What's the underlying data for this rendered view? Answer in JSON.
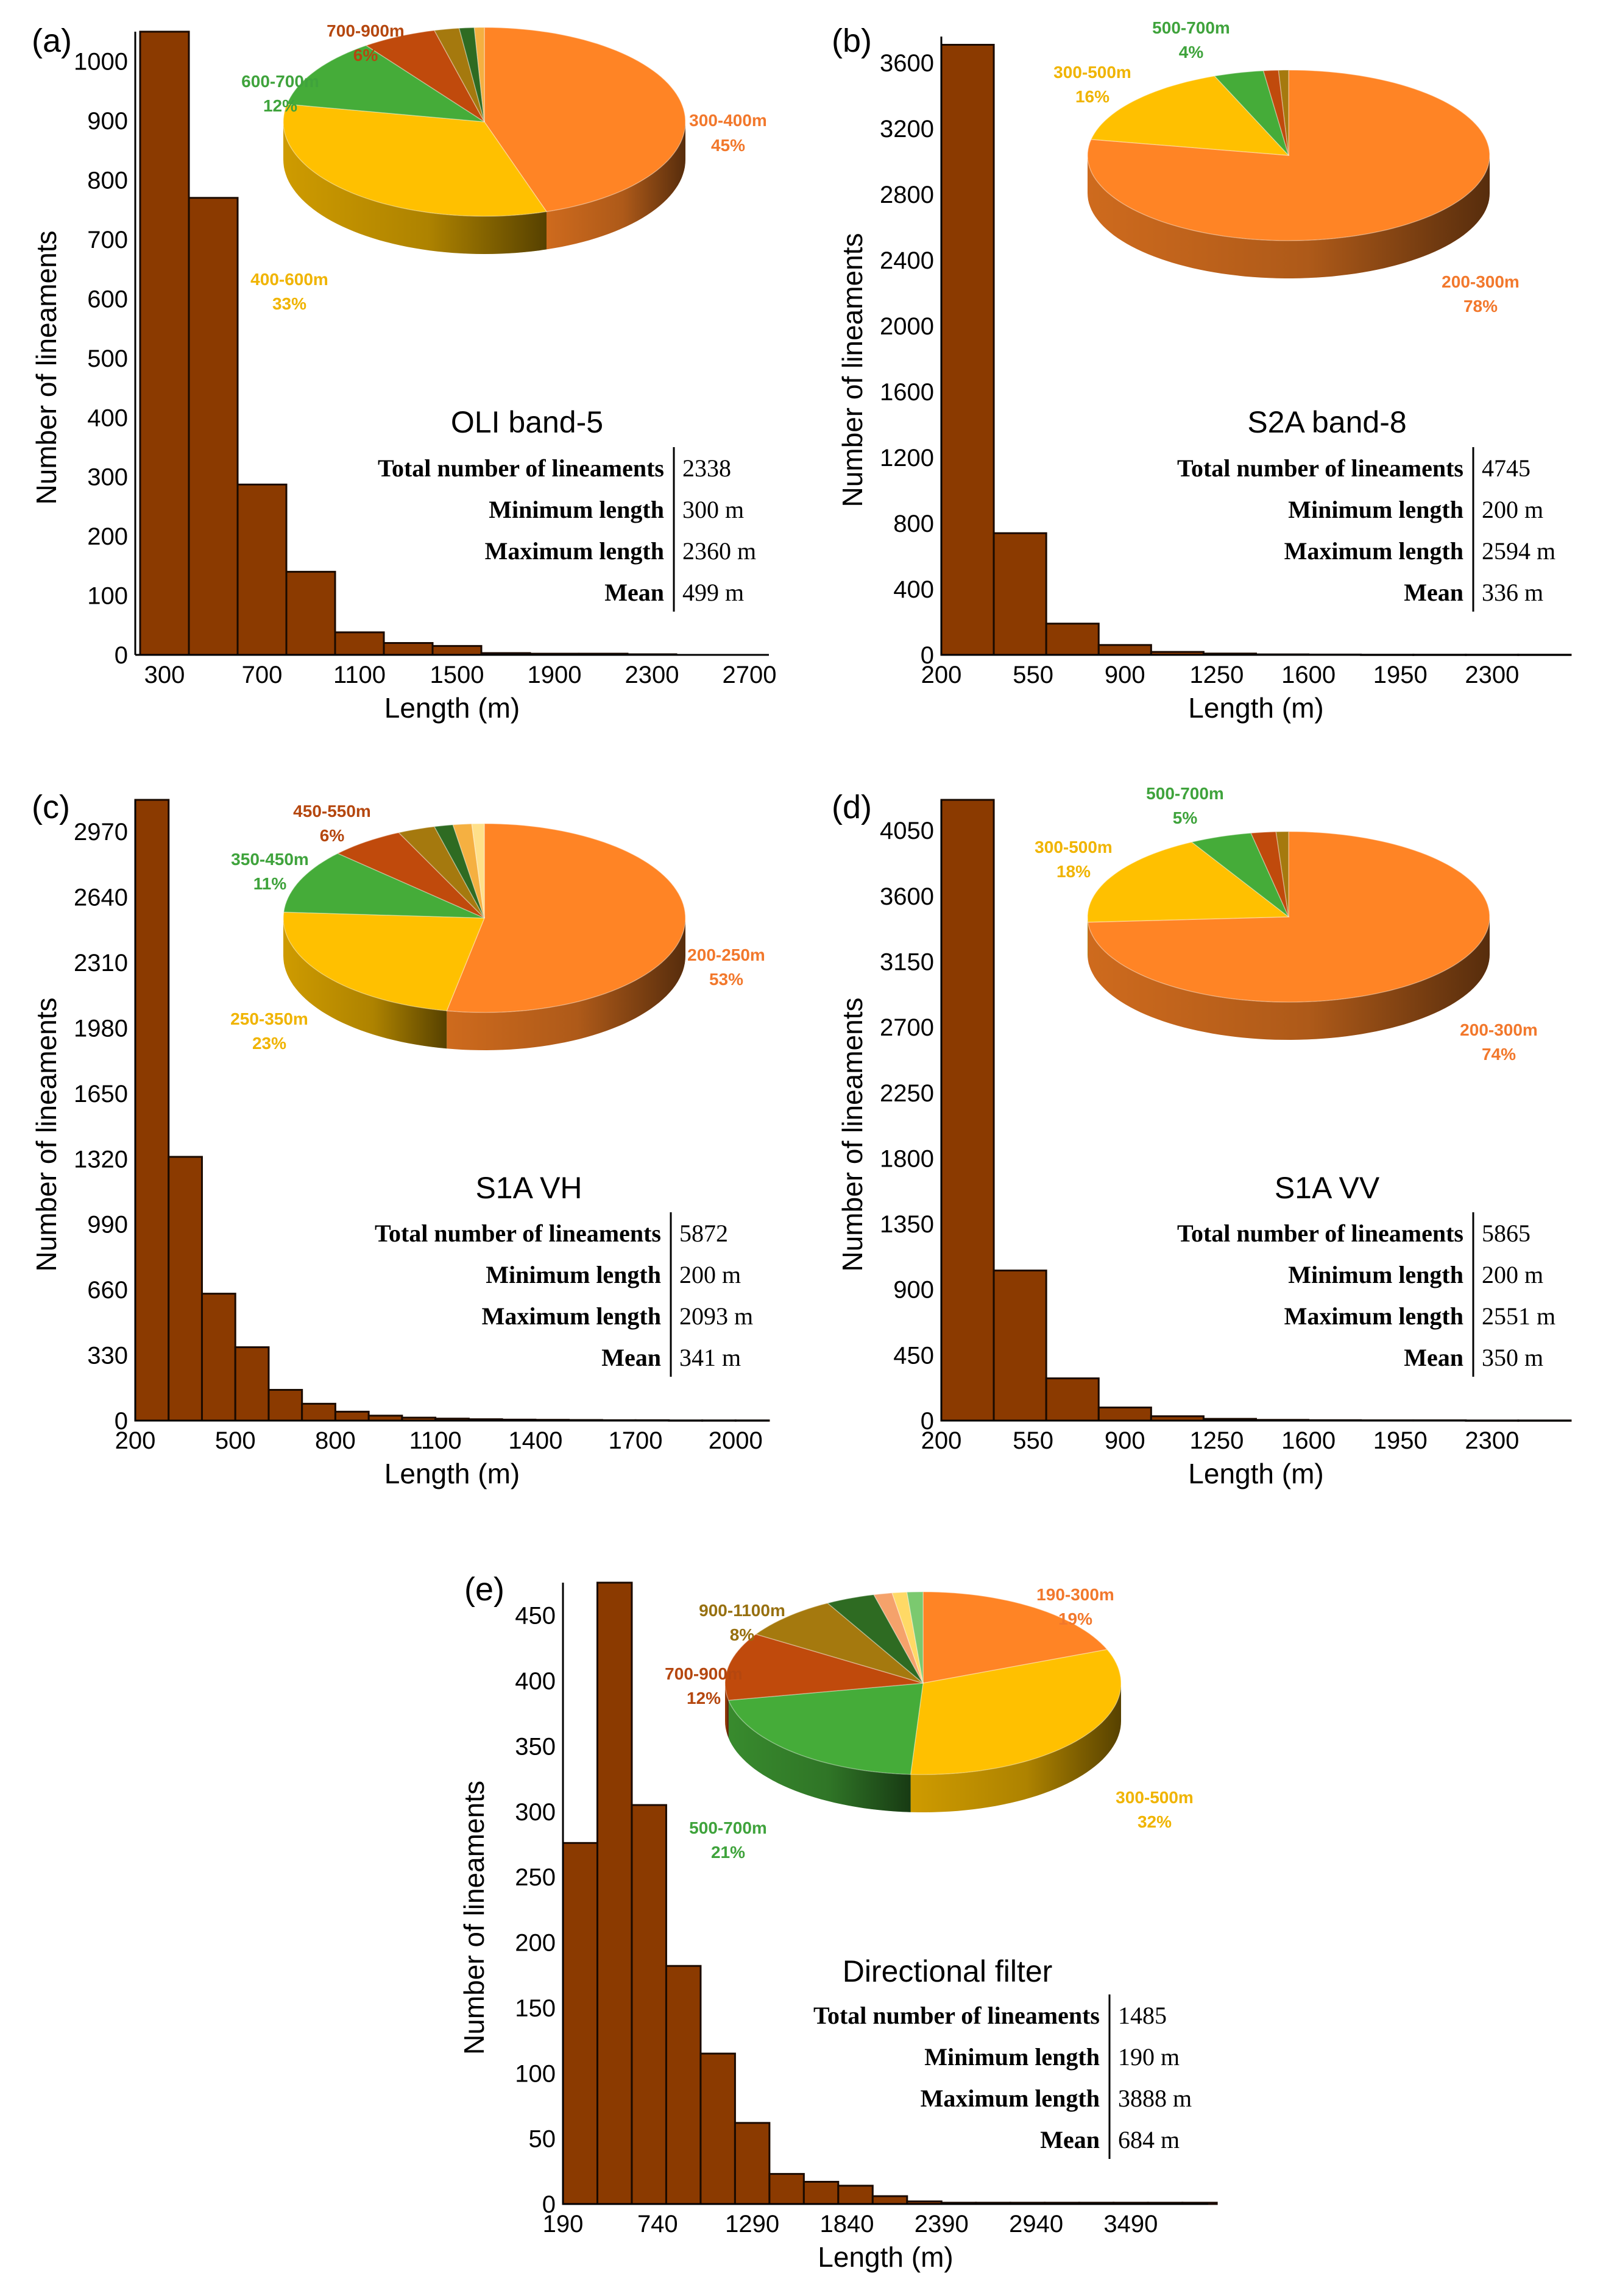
{
  "chart_data": [
    {
      "type": "bar",
      "panel_label": "(a)",
      "title": "OLI band-5",
      "xlabel": "Length (m)",
      "ylabel": "Number of lineaments",
      "x_ticks": [
        "300",
        "700",
        "1100",
        "1500",
        "1900",
        "2300",
        "2700"
      ],
      "x_tick_values": [
        300,
        700,
        1100,
        1500,
        1900,
        2300,
        2700
      ],
      "y_ticks": [
        "0",
        "100",
        "200",
        "300",
        "400",
        "500",
        "600",
        "700",
        "800",
        "900",
        "1000"
      ],
      "y_tick_values": [
        0,
        100,
        200,
        300,
        400,
        500,
        600,
        700,
        800,
        900,
        1000
      ],
      "xlim": [
        180,
        2780
      ],
      "ylim": [
        0,
        1050
      ],
      "bin_start": 200,
      "bin_width": 200,
      "values": [
        1050,
        770,
        287,
        140,
        38,
        20,
        15,
        3,
        2,
        2,
        1
      ],
      "stats": [
        {
          "label": "Total number of lineaments",
          "value": "2338"
        },
        {
          "label": "Minimum length",
          "value": "300 m"
        },
        {
          "label": "Maximum length",
          "value": "2360 m"
        },
        {
          "label": "Mean",
          "value": "499 m"
        }
      ],
      "pie": {
        "slices": [
          {
            "name": "300-400m",
            "value": 45,
            "label": "45%",
            "color": "#ff8425"
          },
          {
            "name": "400-600m",
            "value": 33,
            "label": "33%",
            "color": "#ffc000"
          },
          {
            "name": "600-700m",
            "value": 12,
            "label": "12%",
            "color": "#45ac39"
          },
          {
            "name": "700-900m",
            "value": 6,
            "label": "6%",
            "color": "#c04a0c"
          },
          {
            "name": "",
            "value": 2,
            "label": "",
            "color": "#a5790e"
          },
          {
            "name": "",
            "value": 1.2,
            "label": "",
            "color": "#2e6b22"
          },
          {
            "name": "",
            "value": 0.8,
            "label": "",
            "color": "#f5b041"
          }
        ]
      }
    },
    {
      "type": "bar",
      "panel_label": "(b)",
      "title": "S2A band-8",
      "xlabel": "Length (m)",
      "ylabel": "Number of lineaments",
      "x_ticks": [
        "200",
        "550",
        "900",
        "1250",
        "1600",
        "1950",
        "2300"
      ],
      "x_tick_values": [
        200,
        550,
        900,
        1250,
        1600,
        1950,
        2300
      ],
      "y_ticks": [
        "0",
        "400",
        "800",
        "1200",
        "1600",
        "2000",
        "2400",
        "2800",
        "3200",
        "3600"
      ],
      "y_tick_values": [
        0,
        400,
        800,
        1200,
        1600,
        2000,
        2400,
        2800,
        3200,
        3600
      ],
      "xlim": [
        200,
        2600
      ],
      "ylim": [
        0,
        3760
      ],
      "bin_start": 200,
      "bin_width": 200,
      "values": [
        3710,
        740,
        190,
        60,
        18,
        8,
        3,
        2,
        1,
        1,
        1,
        1
      ],
      "stats": [
        {
          "label": "Total number of lineaments",
          "value": "4745"
        },
        {
          "label": "Minimum length",
          "value": "200 m"
        },
        {
          "label": "Maximum length",
          "value": "2594 m"
        },
        {
          "label": "Mean",
          "value": "336 m"
        }
      ],
      "pie": {
        "slices": [
          {
            "name": "200-300m",
            "value": 78,
            "label": "78%",
            "color": "#ff8425"
          },
          {
            "name": "300-500m",
            "value": 16,
            "label": "16%",
            "color": "#ffc000"
          },
          {
            "name": "500-700m",
            "value": 4,
            "label": "4%",
            "color": "#45ac39"
          },
          {
            "name": "",
            "value": 1.2,
            "label": "",
            "color": "#c04a0c"
          },
          {
            "name": "",
            "value": 0.8,
            "label": "",
            "color": "#a5790e"
          }
        ]
      }
    },
    {
      "type": "bar",
      "panel_label": "(c)",
      "title": "S1A VH",
      "xlabel": "Length (m)",
      "ylabel": "Number of lineaments",
      "x_ticks": [
        "200",
        "500",
        "800",
        "1100",
        "1400",
        "1700",
        "2000"
      ],
      "x_tick_values": [
        200,
        500,
        800,
        1100,
        1400,
        1700,
        2000
      ],
      "y_ticks": [
        "0",
        "330",
        "660",
        "990",
        "1320",
        "1650",
        "1980",
        "2310",
        "2640",
        "2970"
      ],
      "y_tick_values": [
        0,
        330,
        660,
        990,
        1320,
        1650,
        1980,
        2310,
        2640,
        2970
      ],
      "xlim": [
        200,
        2100
      ],
      "ylim": [
        0,
        3130
      ],
      "bin_start": 200,
      "bin_width": 100,
      "values": [
        3130,
        1330,
        640,
        370,
        155,
        85,
        45,
        25,
        15,
        10,
        7,
        5,
        4,
        3,
        2,
        2,
        1,
        1,
        1
      ],
      "stats": [
        {
          "label": "Total number of lineaments",
          "value": "5872"
        },
        {
          "label": "Minimum length",
          "value": "200 m"
        },
        {
          "label": "Maximum length",
          "value": "2093 m"
        },
        {
          "label": "Mean",
          "value": "341 m"
        }
      ],
      "pie": {
        "slices": [
          {
            "name": "200-250m",
            "value": 53,
            "label": "53%",
            "color": "#ff8425"
          },
          {
            "name": "250-350m",
            "value": 23,
            "label": "23%",
            "color": "#ffc000"
          },
          {
            "name": "350-450m",
            "value": 11,
            "label": "11%",
            "color": "#45ac39"
          },
          {
            "name": "450-550m",
            "value": 6,
            "label": "6%",
            "color": "#c04a0c"
          },
          {
            "name": "",
            "value": 3,
            "label": "",
            "color": "#a5790e"
          },
          {
            "name": "",
            "value": 1.5,
            "label": "",
            "color": "#2e6b22"
          },
          {
            "name": "",
            "value": 1.5,
            "label": "",
            "color": "#f5b041"
          },
          {
            "name": "",
            "value": 1,
            "label": "",
            "color": "#ffe08a"
          }
        ]
      }
    },
    {
      "type": "bar",
      "panel_label": "(d)",
      "title": "S1A VV",
      "xlabel": "Length (m)",
      "ylabel": "Number of lineaments",
      "x_ticks": [
        "200",
        "550",
        "900",
        "1250",
        "1600",
        "1950",
        "2300"
      ],
      "x_tick_values": [
        200,
        550,
        900,
        1250,
        1600,
        1950,
        2300
      ],
      "y_ticks": [
        "0",
        "450",
        "900",
        "1350",
        "1800",
        "2250",
        "2700",
        "3150",
        "3600",
        "4050"
      ],
      "y_tick_values": [
        0,
        450,
        900,
        1350,
        1800,
        2250,
        2700,
        3150,
        3600,
        4050
      ],
      "xlim": [
        200,
        2600
      ],
      "ylim": [
        0,
        4260
      ],
      "bin_start": 200,
      "bin_width": 200,
      "values": [
        4260,
        1030,
        290,
        90,
        30,
        12,
        5,
        3,
        2,
        2,
        1,
        1
      ],
      "stats": [
        {
          "label": "Total number of lineaments",
          "value": "5865"
        },
        {
          "label": "Minimum length",
          "value": "200 m"
        },
        {
          "label": "Maximum length",
          "value": "2551 m"
        },
        {
          "label": "Mean",
          "value": "350 m"
        }
      ],
      "pie": {
        "slices": [
          {
            "name": "200-300m",
            "value": 74,
            "label": "74%",
            "color": "#ff8425"
          },
          {
            "name": "300-500m",
            "value": 18,
            "label": "18%",
            "color": "#ffc000"
          },
          {
            "name": "500-700m",
            "value": 5,
            "label": "5%",
            "color": "#45ac39"
          },
          {
            "name": "",
            "value": 2,
            "label": "",
            "color": "#c04a0c"
          },
          {
            "name": "",
            "value": 1,
            "label": "",
            "color": "#a5790e"
          }
        ]
      }
    },
    {
      "type": "bar",
      "panel_label": "(e)",
      "title": "Directional filter",
      "xlabel": "Length (m)",
      "ylabel": "Number of lineaments",
      "x_ticks": [
        "190",
        "740",
        "1290",
        "1840",
        "2390",
        "2940",
        "3490"
      ],
      "x_tick_values": [
        190,
        740,
        1290,
        1840,
        2390,
        2940,
        3490
      ],
      "y_ticks": [
        "0",
        "50",
        "100",
        "150",
        "200",
        "250",
        "300",
        "350",
        "400",
        "450"
      ],
      "y_tick_values": [
        0,
        50,
        100,
        150,
        200,
        250,
        300,
        350,
        400,
        450
      ],
      "xlim": [
        190,
        3940
      ],
      "ylim": [
        0,
        475
      ],
      "bin_start": 190,
      "bin_width": 200,
      "values": [
        276,
        475,
        305,
        182,
        115,
        62,
        23,
        17,
        14,
        6,
        2,
        1,
        1,
        1,
        1,
        1,
        1,
        1,
        1
      ],
      "stats": [
        {
          "label": "Total number of lineaments",
          "value": "1485"
        },
        {
          "label": "Minimum length",
          "value": "190 m"
        },
        {
          "label": "Maximum length",
          "value": "3888 m"
        },
        {
          "label": "Mean",
          "value": "684 m"
        }
      ],
      "pie": {
        "slices": [
          {
            "name": "190-300m",
            "value": 19,
            "label": "19%",
            "color": "#ff8425"
          },
          {
            "name": "300-500m",
            "value": 32,
            "label": "32%",
            "color": "#ffc000"
          },
          {
            "name": "500-700m",
            "value": 21,
            "label": "21%",
            "color": "#45ac39"
          },
          {
            "name": "700-900m",
            "value": 12,
            "label": "12%",
            "color": "#c04a0c"
          },
          {
            "name": "900-1100m",
            "value": 8,
            "label": "8%",
            "color": "#a5790e"
          },
          {
            "name": "",
            "value": 4,
            "label": "",
            "color": "#2e6b22"
          },
          {
            "name": "",
            "value": 1.5,
            "label": "",
            "color": "#f5a26b"
          },
          {
            "name": "",
            "value": 1.2,
            "label": "",
            "color": "#ffd966"
          },
          {
            "name": "",
            "value": 1.3,
            "label": "",
            "color": "#7bc96f"
          }
        ]
      }
    }
  ]
}
